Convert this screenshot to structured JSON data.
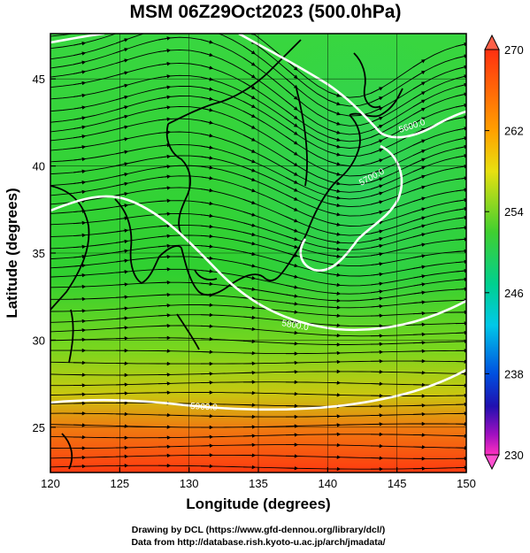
{
  "title": "MSM 06Z29Oct2023 (500.0hPa)",
  "xlabel": "Longitude (degrees)",
  "ylabel": "Latitude  (degrees)",
  "credits": {
    "line1": "Drawing by DCL (https://www.gfd-dennou.org/library/dcl/)",
    "line2": "Data from http://database.rish.kyoto-u.ac.jp/arch/jmadata/"
  },
  "map": {
    "lon_range": [
      120,
      150
    ],
    "lat_range": [
      22.4,
      47.6
    ],
    "x_ticks": [
      "120",
      "125",
      "130",
      "135",
      "140",
      "145",
      "150"
    ],
    "y_ticks": [
      "25",
      "30",
      "35",
      "40",
      "45"
    ],
    "contour_labels": [
      "5600.0",
      "5700.0",
      "5800.0",
      "5900.0"
    ]
  },
  "colorbar": {
    "ticks": [
      "270",
      "262",
      "254",
      "246",
      "238",
      "230"
    ],
    "min": 230,
    "max": 270
  }
}
